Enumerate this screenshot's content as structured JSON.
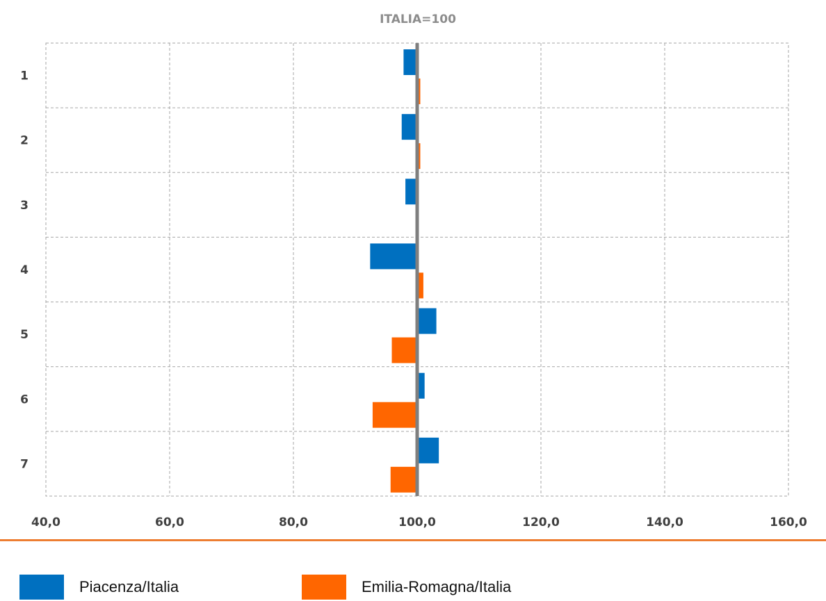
{
  "chart_data": {
    "type": "bar",
    "orientation": "horizontal",
    "title": "ITALIA=100",
    "categories": [
      "1",
      "2",
      "3",
      "4",
      "5",
      "6",
      "7"
    ],
    "series": [
      {
        "name": "Piacenza/Italia",
        "color": "#0070C0",
        "values": [
          97.8,
          97.5,
          98.1,
          92.4,
          103.1,
          101.2,
          103.5
        ]
      },
      {
        "name": "Emilia-Romagna/Italia",
        "color": "#FF6600",
        "values": [
          100.5,
          100.5,
          100.0,
          101.0,
          95.9,
          92.8,
          95.7
        ]
      }
    ],
    "baseline": 100,
    "xlim": [
      40,
      160
    ],
    "xticks": [
      "40,0",
      "60,0",
      "80,0",
      "100,0",
      "120,0",
      "140,0",
      "160,0"
    ],
    "grid": true,
    "legend_position": "bottom"
  },
  "colors": {
    "grid": "#a6a6a6",
    "baseline": "#7f7f7f",
    "title": "#8c8c8c",
    "divider": "#ED7D31",
    "label": "#404040"
  }
}
